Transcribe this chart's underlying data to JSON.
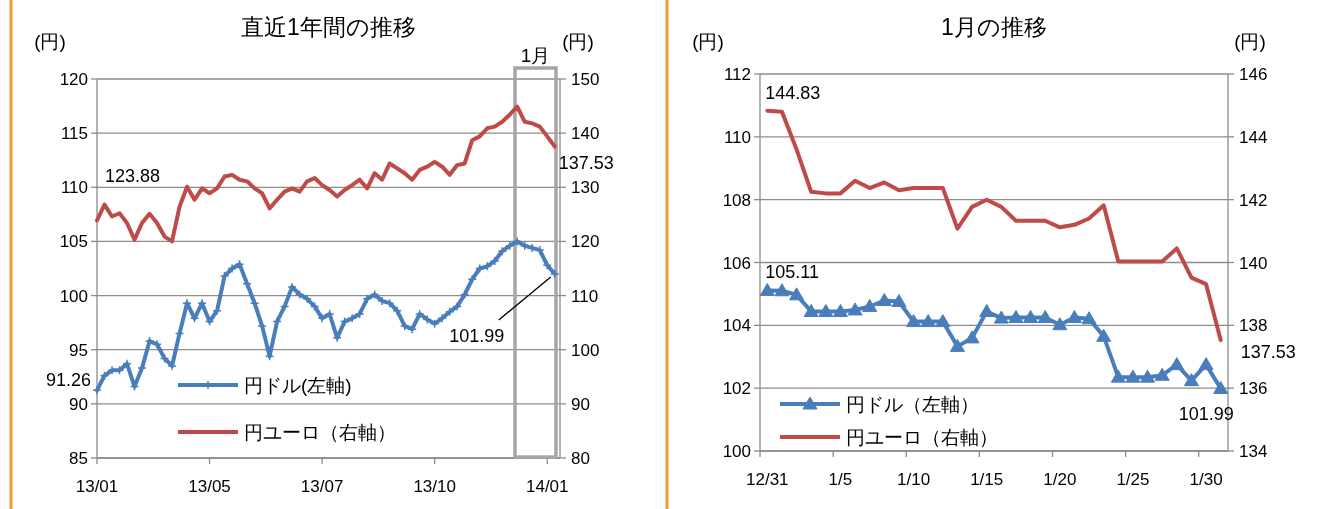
{
  "chart_data": [
    {
      "type": "line",
      "title": "直近1年間の推移",
      "ylabel": "(円)",
      "y2label": "(円)",
      "categories": [
        "13/01",
        null,
        null,
        null,
        null,
        null,
        null,
        null,
        null,
        null,
        null,
        null,
        null,
        null,
        null,
        "13/05",
        null,
        null,
        null,
        null,
        null,
        null,
        null,
        null,
        null,
        null,
        null,
        null,
        null,
        null,
        "13/07",
        null,
        null,
        null,
        null,
        null,
        null,
        null,
        null,
        null,
        null,
        null,
        null,
        null,
        null,
        "13/10",
        null,
        null,
        null,
        null,
        null,
        null,
        null,
        null,
        null,
        null,
        null,
        null,
        null,
        null,
        "14/01",
        null
      ],
      "ylim": [
        85,
        120
      ],
      "yticks": [
        85,
        90,
        95,
        100,
        105,
        110,
        115,
        120
      ],
      "y2lim": [
        80,
        150
      ],
      "y2ticks": [
        80,
        90,
        100,
        110,
        120,
        130,
        140,
        150
      ],
      "grid": "y",
      "legend": "bottom left",
      "annotations": [
        "1月"
      ],
      "series": [
        {
          "name": "円ドル(左軸)",
          "color": "#4a7ebb",
          "marker": "cross",
          "values": [
            91.26,
            92.6,
            93.1,
            93.1,
            93.7,
            91.6,
            93.3,
            95.8,
            95.5,
            94.2,
            93.5,
            96.5,
            99.3,
            97.9,
            99.3,
            97.6,
            98.6,
            101.8,
            102.5,
            102.9,
            101.1,
            99.3,
            97.2,
            94.4,
            97.6,
            99.0,
            100.8,
            100.1,
            99.7,
            99.0,
            97.9,
            98.3,
            96.1,
            97.6,
            97.9,
            98.3,
            99.7,
            100.1,
            99.5,
            99.3,
            98.6,
            97.2,
            96.9,
            98.3,
            97.8,
            97.4,
            97.9,
            98.5,
            99.0,
            100.1,
            101.5,
            102.5,
            102.7,
            103.2,
            104.1,
            104.6,
            105.0,
            104.6,
            104.4,
            104.2,
            102.8,
            101.99
          ],
          "value_labels": [
            "91.26",
            null,
            null,
            null,
            null,
            null,
            null,
            null,
            null,
            null,
            null,
            null,
            null,
            null,
            null,
            null,
            null,
            null,
            null,
            null,
            null,
            null,
            null,
            null,
            null,
            null,
            null,
            null,
            null,
            null,
            null,
            null,
            null,
            null,
            null,
            null,
            null,
            null,
            null,
            null,
            null,
            null,
            null,
            null,
            null,
            null,
            null,
            null,
            null,
            null,
            null,
            null,
            null,
            null,
            null,
            null,
            null,
            null,
            null,
            null,
            null,
            "101.99"
          ]
        },
        {
          "name": "円ユーロ（右軸）",
          "color": "#be4b48",
          "axis": "y2",
          "values": [
            123.88,
            126.8,
            124.6,
            125.2,
            123.4,
            120.3,
            123.4,
            125.1,
            123.4,
            120.9,
            120.0,
            126.4,
            130.1,
            127.7,
            129.8,
            128.9,
            129.8,
            132.0,
            132.3,
            131.4,
            131.1,
            129.8,
            128.9,
            126.1,
            127.7,
            129.2,
            129.8,
            129.2,
            131.1,
            131.7,
            130.4,
            129.5,
            128.3,
            129.5,
            130.4,
            131.4,
            129.8,
            132.6,
            131.4,
            134.4,
            133.5,
            132.6,
            131.4,
            133.2,
            133.8,
            134.7,
            133.8,
            132.3,
            134.1,
            134.4,
            138.7,
            139.4,
            140.9,
            141.2,
            142.1,
            143.4,
            144.9,
            142.1,
            141.8,
            141.2,
            139.4,
            137.53
          ],
          "value_labels": [
            "123.88",
            null,
            null,
            null,
            null,
            null,
            null,
            null,
            null,
            null,
            null,
            null,
            null,
            null,
            null,
            null,
            null,
            null,
            null,
            null,
            null,
            null,
            null,
            null,
            null,
            null,
            null,
            null,
            null,
            null,
            null,
            null,
            null,
            null,
            null,
            null,
            null,
            null,
            null,
            null,
            null,
            null,
            null,
            null,
            null,
            null,
            null,
            null,
            null,
            null,
            null,
            null,
            null,
            null,
            null,
            null,
            null,
            null,
            null,
            null,
            null,
            "137.53"
          ]
        }
      ]
    },
    {
      "type": "line",
      "title": "1月の推移",
      "ylabel": "(円)",
      "y2label": "(円)",
      "categories": [
        "12/31",
        null,
        null,
        null,
        null,
        "1/5",
        null,
        null,
        null,
        null,
        "1/10",
        null,
        null,
        null,
        null,
        "1/15",
        null,
        null,
        null,
        null,
        "1/20",
        null,
        null,
        null,
        null,
        "1/25",
        null,
        null,
        null,
        null,
        "1/30",
        null
      ],
      "ylim": [
        100,
        112
      ],
      "yticks": [
        100,
        102,
        104,
        106,
        108,
        110,
        112
      ],
      "y2lim": [
        134,
        146
      ],
      "y2ticks": [
        134,
        136,
        138,
        140,
        142,
        144,
        146
      ],
      "grid": "y",
      "legend": "bottom left",
      "series": [
        {
          "name": "円ドル（左軸）",
          "color": "#4a7ebb",
          "marker": "triangle",
          "values": [
            105.11,
            105.1,
            104.97,
            104.44,
            104.44,
            104.44,
            104.49,
            104.6,
            104.79,
            104.76,
            104.12,
            104.12,
            104.12,
            103.33,
            103.6,
            104.44,
            104.23,
            104.25,
            104.25,
            104.25,
            104.02,
            104.25,
            104.21,
            103.65,
            102.35,
            102.35,
            102.35,
            102.41,
            102.75,
            102.24,
            102.75,
            101.99
          ],
          "value_labels": [
            "105.11",
            null,
            null,
            null,
            null,
            null,
            null,
            null,
            null,
            null,
            null,
            null,
            null,
            null,
            null,
            null,
            null,
            null,
            null,
            null,
            null,
            null,
            null,
            null,
            null,
            null,
            null,
            null,
            null,
            null,
            null,
            "101.99"
          ]
        },
        {
          "name": "円ユーロ（右軸）",
          "color": "#be4b48",
          "axis": "y2",
          "values": [
            144.83,
            144.8,
            143.6,
            142.25,
            142.2,
            142.2,
            142.6,
            142.37,
            142.55,
            142.3,
            142.37,
            142.37,
            142.37,
            141.08,
            141.77,
            142.0,
            141.77,
            141.33,
            141.33,
            141.33,
            141.12,
            141.2,
            141.4,
            141.82,
            140.03,
            140.03,
            140.03,
            140.03,
            140.45,
            139.52,
            139.31,
            137.53
          ],
          "value_labels": [
            "144.83",
            null,
            null,
            null,
            null,
            null,
            null,
            null,
            null,
            null,
            null,
            null,
            null,
            null,
            null,
            null,
            null,
            null,
            null,
            null,
            null,
            null,
            null,
            null,
            null,
            null,
            null,
            null,
            null,
            null,
            null,
            "137.53"
          ]
        }
      ]
    }
  ]
}
